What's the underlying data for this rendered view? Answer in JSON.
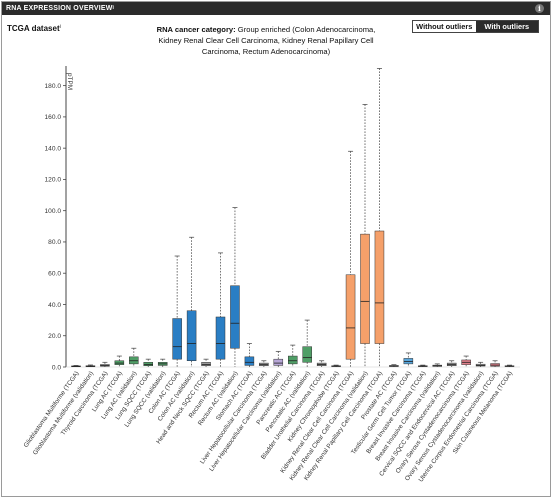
{
  "window": {
    "title": "RNA EXPRESSION OVERVIEW",
    "title_sup": "i",
    "info_glyph": "i"
  },
  "dataset": {
    "label": "TCGA dataset",
    "sup": "i"
  },
  "category": {
    "label": "RNA cancer category:",
    "text": "Group enriched (Colon Adenocarcinoma, Kidney Renal Clear Cell Carcinoma, Kidney Renal Papillary Cell Carcinoma, Rectum Adenocarcinoma)"
  },
  "toggle": {
    "without": "Without outliers",
    "with": "With outliers",
    "active": "with"
  },
  "colors": {
    "blue": "#2a7ec4",
    "green": "#4f9e66",
    "lavender": "#b7a6d6",
    "orange": "#f5a06a",
    "pink": "#e07f8a",
    "grey": "#9a9a9a",
    "lightblue": "#58a6dc",
    "whisker": "#555555"
  },
  "chart_data": {
    "type": "box",
    "ylabel": "pTPM",
    "ylim": [
      0,
      190
    ],
    "yticks": [
      0.0,
      20.0,
      40.0,
      60.0,
      80.0,
      100.0,
      120.0,
      140.0,
      160.0,
      180.0
    ],
    "categories": [
      "Glioblastoma Multiforme (TCGA)",
      "Glioblastoma Multiforme (validation)",
      "Thyroid Carcinoma (TCGA)",
      "Lung AC (TCGA)",
      "Lung AC (validation)",
      "Lung SQCC (TCGA)",
      "Lung SQCC (validation)",
      "Colon AC (TCGA)",
      "Colon AC (validation)",
      "Head and Neck SQCC (TCGA)",
      "Rectum AC (TCGA)",
      "Rectum AC (validation)",
      "Stomach AC (TCGA)",
      "Liver Hepatocellular Carcinoma (TCGA)",
      "Liver Hepatocellular Carcinoma (validation)",
      "Pancreatic AC (TCGA)",
      "Pancreatic AC (validation)",
      "Bladder Urothelial Carcinoma (TCGA)",
      "Kidney Chromophobe (TCGA)",
      "Kidney Renal Clear Cell Carcinoma (TCGA)",
      "Kidney Renal Clear Cell Carcinoma (validation)",
      "Kidney Renal Papillary Cell Carcinoma (TCGA)",
      "Prostate AC (TCGA)",
      "Testicular Germ Cell Tumor (TCGA)",
      "Breast Invasive Carcinoma (TCGA)",
      "Breast Invasive Carcinoma (validation)",
      "Cervical SQCC and Endocervical AC (TCGA)",
      "Ovary Serous Cystadenocarcinoma (TCGA)",
      "Ovary Serous Cystadenocarcinoma (validation)",
      "Uterine Corpus Endometrial Carcinoma (TCGA)",
      "Skin Cutaneous Melanoma (TCGA)"
    ],
    "boxes": [
      {
        "min": 0.0,
        "q1": 0.2,
        "median": 0.4,
        "q3": 0.7,
        "max": 1.0,
        "color": "grey"
      },
      {
        "min": 0.0,
        "q1": 0.2,
        "median": 0.5,
        "q3": 0.8,
        "max": 1.3,
        "color": "grey"
      },
      {
        "min": 0.0,
        "q1": 0.5,
        "median": 1.0,
        "q3": 1.6,
        "max": 3.0,
        "color": "grey"
      },
      {
        "min": 0.0,
        "q1": 1.5,
        "median": 2.5,
        "q3": 4.0,
        "max": 7.0,
        "color": "green"
      },
      {
        "min": 0.0,
        "q1": 2.0,
        "median": 4.0,
        "q3": 6.5,
        "max": 12.0,
        "color": "green"
      },
      {
        "min": 0.0,
        "q1": 0.8,
        "median": 1.6,
        "q3": 3.0,
        "max": 5.0,
        "color": "green"
      },
      {
        "min": 0.0,
        "q1": 1.0,
        "median": 2.0,
        "q3": 3.0,
        "max": 5.0,
        "color": "green"
      },
      {
        "min": 0.0,
        "q1": 5.0,
        "median": 13.0,
        "q3": 31.0,
        "max": 71.0,
        "color": "blue"
      },
      {
        "min": 0.0,
        "q1": 4.0,
        "median": 15.0,
        "q3": 36.0,
        "max": 83.0,
        "color": "blue"
      },
      {
        "min": 0.0,
        "q1": 0.8,
        "median": 1.6,
        "q3": 3.0,
        "max": 5.0,
        "color": "grey"
      },
      {
        "min": 0.0,
        "q1": 5.0,
        "median": 15.0,
        "q3": 32.0,
        "max": 73.0,
        "color": "blue"
      },
      {
        "min": 0.0,
        "q1": 12.0,
        "median": 28.0,
        "q3": 52.0,
        "max": 102.0,
        "color": "blue"
      },
      {
        "min": 0.0,
        "q1": 1.0,
        "median": 3.0,
        "q3": 6.5,
        "max": 15.0,
        "color": "blue"
      },
      {
        "min": 0.0,
        "q1": 0.8,
        "median": 1.5,
        "q3": 2.5,
        "max": 4.0,
        "color": "grey"
      },
      {
        "min": 0.0,
        "q1": 1.0,
        "median": 2.5,
        "q3": 5.0,
        "max": 10.0,
        "color": "lavender"
      },
      {
        "min": 0.0,
        "q1": 2.0,
        "median": 4.0,
        "q3": 7.0,
        "max": 14.0,
        "color": "green"
      },
      {
        "min": 0.0,
        "q1": 3.0,
        "median": 6.0,
        "q3": 13.0,
        "max": 30.0,
        "color": "green"
      },
      {
        "min": 0.0,
        "q1": 0.8,
        "median": 1.6,
        "q3": 2.5,
        "max": 4.0,
        "color": "grey"
      },
      {
        "min": 0.0,
        "q1": 0.3,
        "median": 0.5,
        "q3": 0.8,
        "max": 1.2,
        "color": "grey"
      },
      {
        "min": 0.0,
        "q1": 5.0,
        "median": 25.0,
        "q3": 59.0,
        "max": 138.0,
        "color": "orange"
      },
      {
        "min": 0.0,
        "q1": 15.0,
        "median": 42.0,
        "q3": 85.0,
        "max": 168.0,
        "color": "orange"
      },
      {
        "min": 0.0,
        "q1": 15.0,
        "median": 41.0,
        "q3": 87.0,
        "max": 191.0,
        "color": "orange"
      },
      {
        "min": 0.0,
        "q1": 0.3,
        "median": 0.6,
        "q3": 1.0,
        "max": 1.5,
        "color": "grey"
      },
      {
        "min": 0.0,
        "q1": 2.0,
        "median": 3.5,
        "q3": 5.5,
        "max": 9.0,
        "color": "lightblue"
      },
      {
        "min": 0.0,
        "q1": 0.3,
        "median": 0.5,
        "q3": 0.8,
        "max": 1.2,
        "color": "grey"
      },
      {
        "min": 0.0,
        "q1": 0.4,
        "median": 0.7,
        "q3": 1.2,
        "max": 2.0,
        "color": "grey"
      },
      {
        "min": 0.0,
        "q1": 0.8,
        "median": 1.5,
        "q3": 2.5,
        "max": 4.0,
        "color": "grey"
      },
      {
        "min": 0.0,
        "q1": 1.5,
        "median": 3.0,
        "q3": 4.5,
        "max": 7.0,
        "color": "pink"
      },
      {
        "min": 0.0,
        "q1": 0.6,
        "median": 1.0,
        "q3": 1.8,
        "max": 3.0,
        "color": "grey"
      },
      {
        "min": 0.0,
        "q1": 0.5,
        "median": 1.2,
        "q3": 2.2,
        "max": 4.0,
        "color": "pink"
      },
      {
        "min": 0.0,
        "q1": 0.3,
        "median": 0.5,
        "q3": 0.8,
        "max": 1.2,
        "color": "grey"
      }
    ]
  }
}
